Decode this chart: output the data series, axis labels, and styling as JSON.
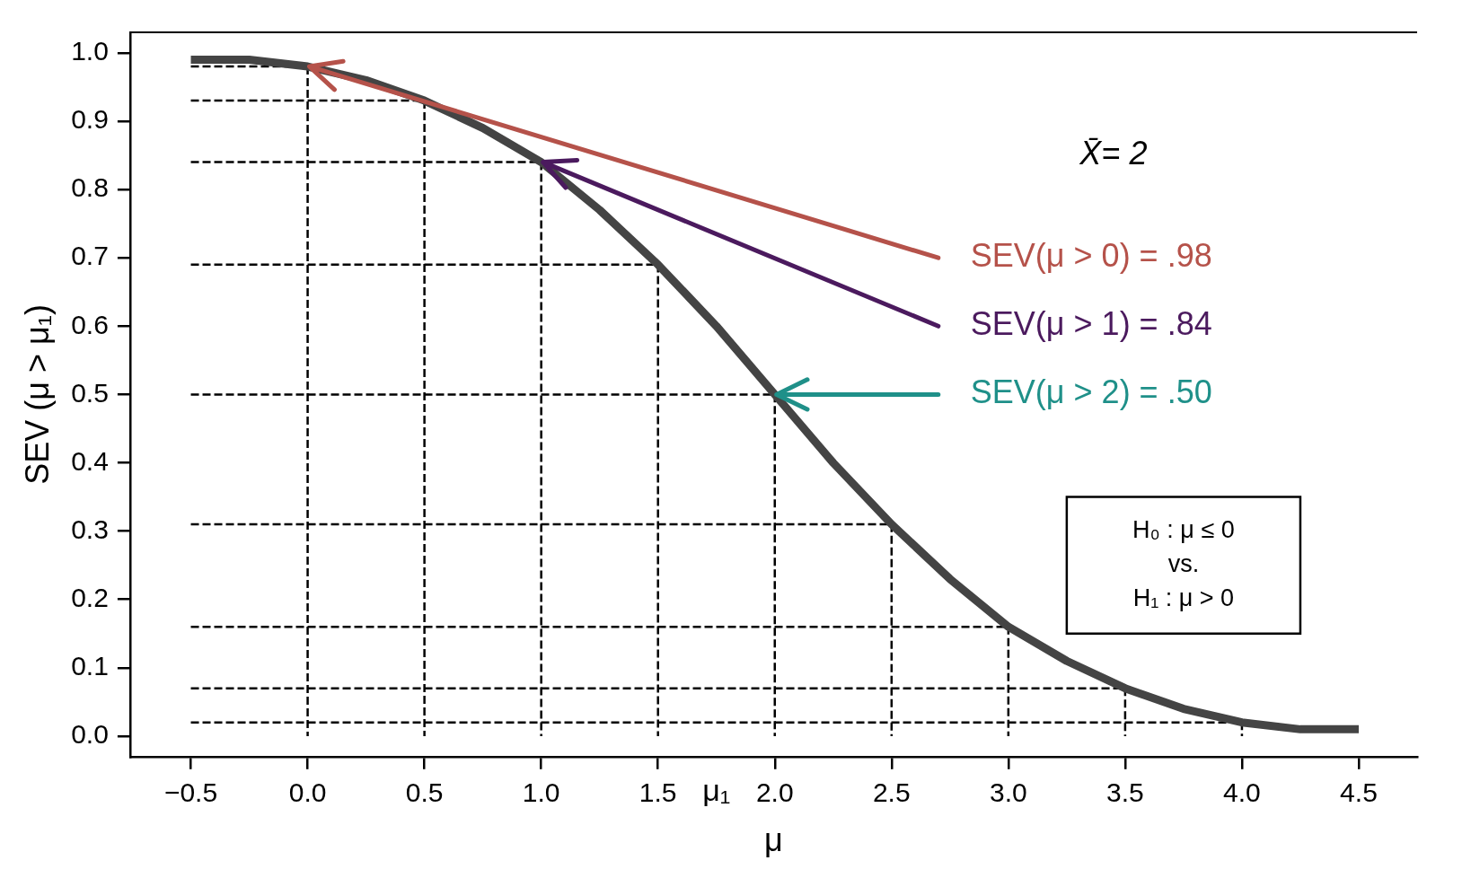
{
  "chart_data": {
    "type": "line",
    "xlabel": "μ",
    "ylabel": "SEV (μ > μ₁)",
    "xlim": [
      -0.76,
      4.75
    ],
    "ylim": [
      -0.03,
      1.03
    ],
    "xticks": [
      {
        "value": -0.5,
        "label": "−0.5"
      },
      {
        "value": 0,
        "label": "0.0"
      },
      0.5,
      {
        "value": 1,
        "label": "1.0"
      },
      1.5,
      {
        "value": 2,
        "label": "2.0"
      },
      2.5,
      {
        "value": 3,
        "label": "3.0"
      },
      3.5,
      {
        "value": 4,
        "label": "4.0"
      },
      4.5
    ],
    "yticks": [
      {
        "value": 0,
        "label": "0.0"
      },
      0.1,
      0.2,
      0.3,
      0.4,
      0.5,
      0.6,
      0.7,
      0.8,
      0.9,
      {
        "value": 1,
        "label": "1.0"
      }
    ],
    "grid": false,
    "legend": false,
    "marker": "none",
    "series": [
      {
        "color": "#444444",
        "line_style": "solid",
        "x": [
          -0.5,
          -0.25,
          0,
          0.25,
          0.5,
          0.75,
          1,
          1.25,
          1.5,
          1.75,
          2,
          2.25,
          2.5,
          2.75,
          3,
          3.25,
          3.5,
          3.75,
          4,
          4.25,
          4.5
        ],
        "values": [
          0.99,
          0.99,
          0.98,
          0.96,
          0.93,
          0.89,
          0.84,
          0.77,
          0.69,
          0.6,
          0.5,
          0.4,
          0.31,
          0.23,
          0.16,
          0.11,
          0.07,
          0.04,
          0.02,
          0.01,
          0.01
        ]
      },
      {
        "color": "#000000",
        "line_style": "dashed",
        "x": [
          -0.5,
          0,
          0
        ],
        "values": [
          0.98,
          0.98,
          0
        ]
      },
      {
        "color": "#000000",
        "line_style": "dashed",
        "x": [
          -0.5,
          0.5,
          0.5
        ],
        "values": [
          0.93,
          0.93,
          0
        ]
      },
      {
        "color": "#000000",
        "line_style": "dashed",
        "x": [
          -0.5,
          1,
          1
        ],
        "values": [
          0.84,
          0.84,
          0
        ]
      },
      {
        "color": "#000000",
        "line_style": "dashed",
        "x": [
          -0.5,
          1.5,
          1.5
        ],
        "values": [
          0.69,
          0.69,
          0
        ]
      },
      {
        "color": "#000000",
        "line_style": "dashed",
        "x": [
          -0.5,
          2,
          2
        ],
        "values": [
          0.5,
          0.5,
          0
        ]
      },
      {
        "color": "#000000",
        "line_style": "dashed",
        "x": [
          -0.5,
          2.5,
          2.5
        ],
        "values": [
          0.31,
          0.31,
          0
        ]
      },
      {
        "color": "#000000",
        "line_style": "dashed",
        "x": [
          -0.5,
          3,
          3
        ],
        "values": [
          0.16,
          0.16,
          0
        ]
      },
      {
        "color": "#000000",
        "line_style": "dashed",
        "x": [
          -0.5,
          3.5,
          3.5
        ],
        "values": [
          0.07,
          0.07,
          0
        ]
      },
      {
        "color": "#000000",
        "line_style": "dashed",
        "x": [
          -0.5,
          4,
          4
        ],
        "values": [
          0.02,
          0.02,
          0
        ]
      }
    ],
    "annotations": [
      {
        "text": "SEV(μ > 0) = .98",
        "x": 0,
        "y": 0.98
      },
      {
        "text": "SEV(μ > 1) = .84",
        "x": 1,
        "y": 0.84
      },
      {
        "text": "SEV(μ > 2) = .50",
        "x": 2,
        "y": 0.5
      },
      "X̄= 2",
      "H₀ : μ ≤ 0",
      "vs.",
      "H₁ : μ > 0",
      "μ₁"
    ]
  }
}
